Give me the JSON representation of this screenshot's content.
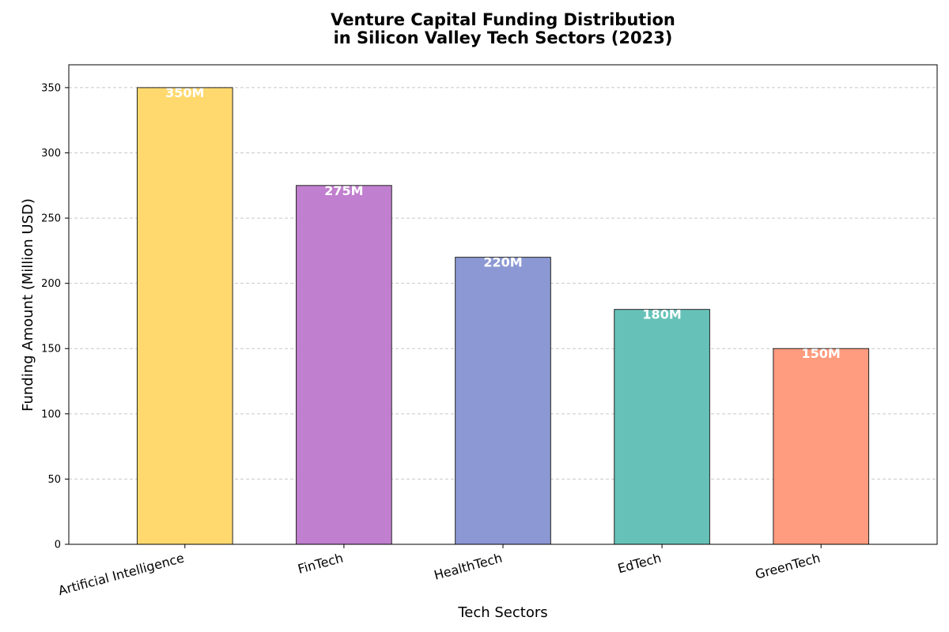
{
  "chart_data": {
    "type": "bar",
    "title_lines": [
      "Venture Capital Funding Distribution",
      "in Silicon Valley Tech Sectors (2023)"
    ],
    "xlabel": "Tech Sectors",
    "ylabel": "Funding Amount (Million USD)",
    "categories": [
      "Artificial Intelligence",
      "FinTech",
      "HealthTech",
      "EdTech",
      "GreenTech"
    ],
    "values": [
      350,
      275,
      220,
      180,
      150
    ],
    "data_labels": [
      "350M",
      "275M",
      "220M",
      "180M",
      "150M"
    ],
    "colors": [
      "#FFD96E",
      "#C17FCF",
      "#8C98D3",
      "#66C2B8",
      "#FF9B7E"
    ],
    "ylim": [
      0,
      367.5
    ],
    "yticks": [
      0,
      50,
      100,
      150,
      200,
      250,
      300,
      350
    ],
    "grid": "y-dashed"
  }
}
